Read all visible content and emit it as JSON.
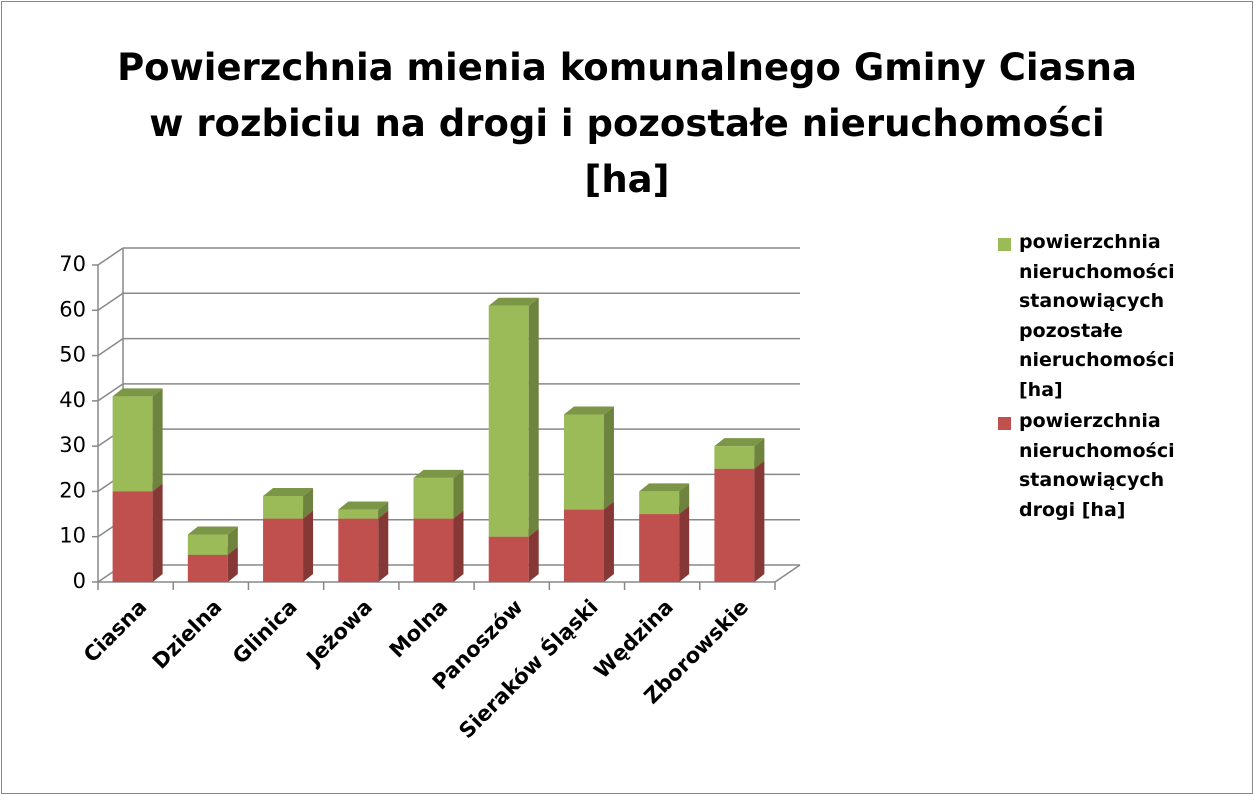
{
  "chart_data": {
    "type": "bar3d_stacked",
    "title": "Powierzchnia mienia komunalnego Gminy Ciasna\nw rozbiciu na drogi i  pozostałe nieruchomości\n[ha]",
    "categories": [
      "Ciasna",
      "Dzielna",
      "Glinica",
      "Jeżowa",
      "Molna",
      "Panoszów",
      "Sieraków Śląski",
      "Wędzina",
      "Zborowskie"
    ],
    "series": [
      {
        "name": "powierzchnia nieruchomości stanowiących drogi [ha]",
        "color": "#c0504d",
        "values": [
          20,
          6,
          14,
          14,
          14,
          10,
          16,
          15,
          25
        ]
      },
      {
        "name": "powierzchnia nieruchomości stanowiących pozostałe nieruchomości [ha]",
        "color": "#9bbb59",
        "values": [
          21,
          4.5,
          5,
          2,
          9,
          51,
          21,
          5,
          5
        ]
      }
    ],
    "ylim": [
      0,
      70
    ],
    "yticks": [
      0,
      10,
      20,
      30,
      40,
      50,
      60,
      70
    ],
    "grid": true,
    "legend": "right"
  }
}
